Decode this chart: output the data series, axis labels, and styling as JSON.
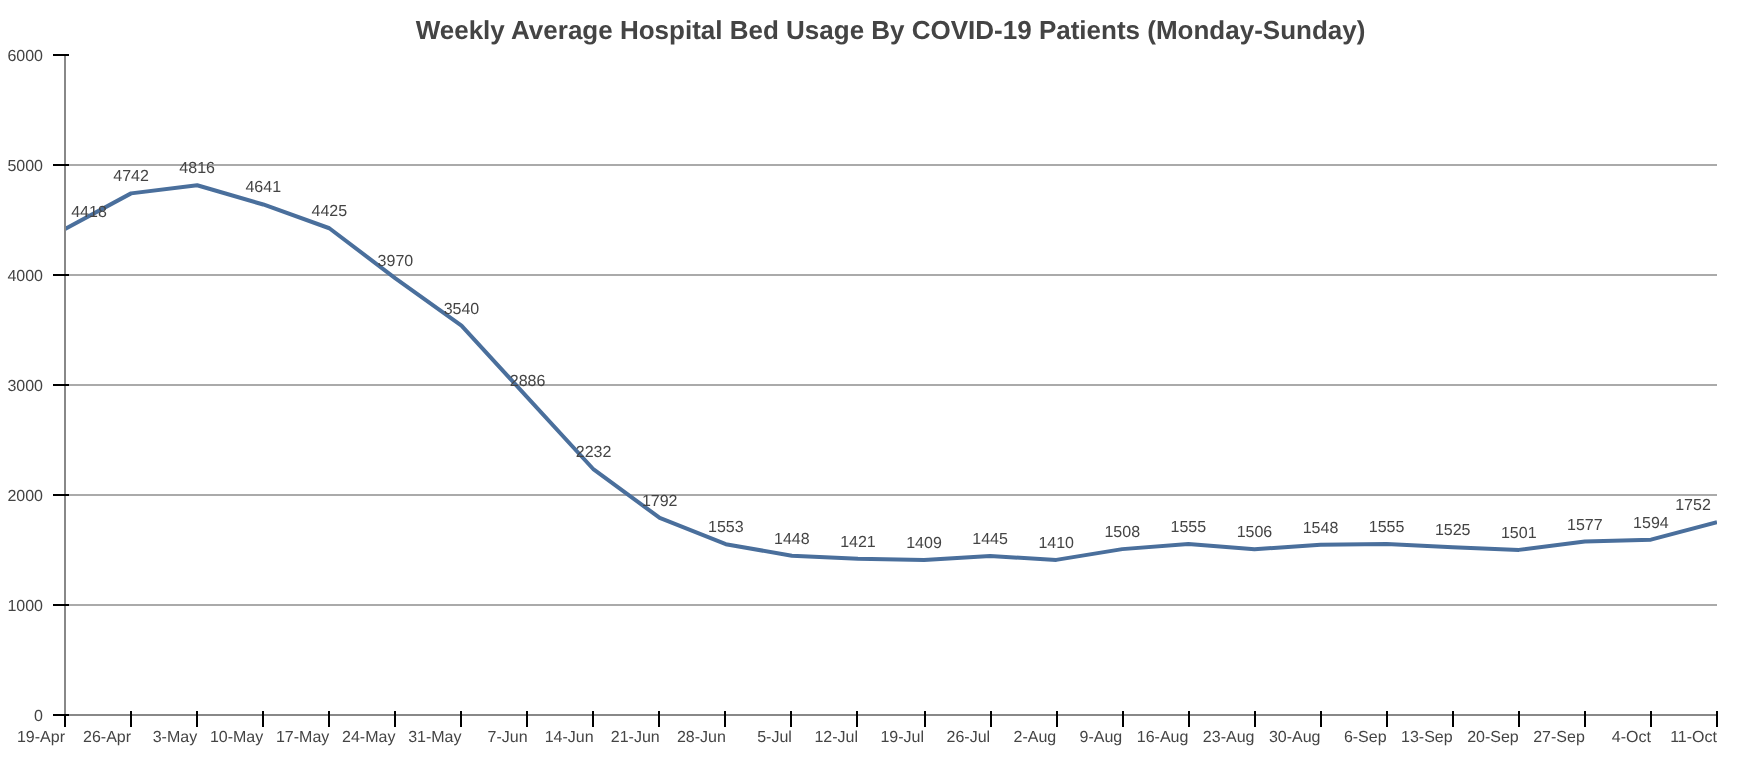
{
  "chart_data": {
    "type": "line",
    "title": "Weekly Average Hospital Bed Usage By COVID-19 Patients (Monday-Sunday)",
    "categories": [
      "19-Apr",
      "26-Apr",
      "3-May",
      "10-May",
      "17-May",
      "24-May",
      "31-May",
      "7-Jun",
      "14-Jun",
      "21-Jun",
      "28-Jun",
      "5-Jul",
      "12-Jul",
      "19-Jul",
      "26-Jul",
      "2-Aug",
      "9-Aug",
      "16-Aug",
      "23-Aug",
      "30-Aug",
      "6-Sep",
      "13-Sep",
      "20-Sep",
      "27-Sep",
      "4-Oct",
      "11-Oct"
    ],
    "series": [
      {
        "color": "#4a6f9c",
        "values": [
          4418,
          4742,
          4816,
          4641,
          4425,
          3970,
          3540,
          2886,
          2232,
          1792,
          1553,
          1448,
          1421,
          1409,
          1445,
          1410,
          1508,
          1555,
          1506,
          1548,
          1555,
          1525,
          1501,
          1577,
          1594,
          1752
        ]
      }
    ],
    "ylim": [
      0,
      6000
    ],
    "yticks": [
      0,
      1000,
      2000,
      3000,
      4000,
      5000,
      6000
    ],
    "grid": "y",
    "data_labels": true,
    "marker": "none",
    "line_style": "solid"
  }
}
